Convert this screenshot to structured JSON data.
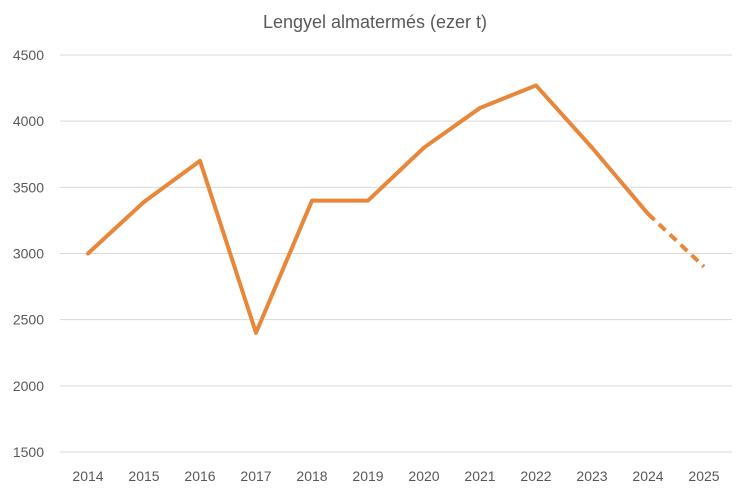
{
  "chart_data": {
    "type": "line",
    "title": "Lengyel almatermés (ezer t)",
    "xlabel": "",
    "ylabel": "",
    "categories": [
      "2014",
      "2015",
      "2016",
      "2017",
      "2018",
      "2019",
      "2020",
      "2021",
      "2022",
      "2023",
      "2024",
      "2025"
    ],
    "yticks": [
      "1500",
      "2000",
      "2500",
      "3000",
      "3500",
      "4000",
      "4500"
    ],
    "ylim": [
      1500,
      4500
    ],
    "grid": true,
    "legend": "none",
    "series": [
      {
        "values": [
          3000,
          3390,
          3700,
          2400,
          3400,
          3400,
          3800,
          4100,
          4270,
          3800,
          3300,
          2900
        ],
        "projected_from_index": 10,
        "color": "#E8873A"
      }
    ]
  }
}
